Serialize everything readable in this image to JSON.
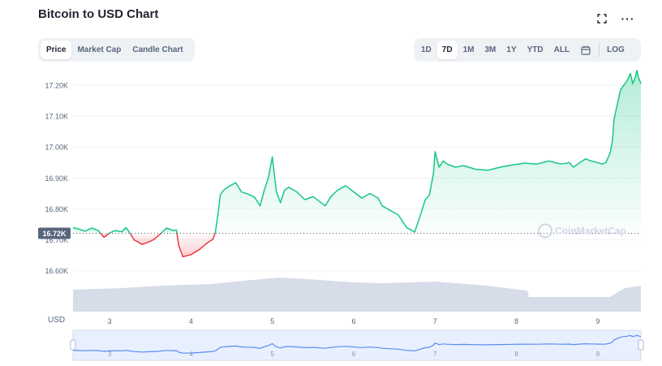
{
  "header": {
    "title": "Bitcoin to USD Chart"
  },
  "tabs": [
    {
      "label": "Price",
      "active": true
    },
    {
      "label": "Market Cap",
      "active": false
    },
    {
      "label": "Candle Chart",
      "active": false
    }
  ],
  "ranges": [
    {
      "label": "1D",
      "active": false
    },
    {
      "label": "7D",
      "active": true
    },
    {
      "label": "1M",
      "active": false
    },
    {
      "label": "3M",
      "active": false
    },
    {
      "label": "1Y",
      "active": false
    },
    {
      "label": "YTD",
      "active": false
    },
    {
      "label": "ALL",
      "active": false
    }
  ],
  "log_label": "LOG",
  "icons": {
    "expand": "expand-icon",
    "more": "more-icon",
    "calendar": "calendar-icon"
  },
  "colors": {
    "up": "#16c784",
    "down": "#ea3943",
    "volume": "#cfd6e4",
    "navigator": "#e8efff",
    "navigator_line": "#5b8def"
  },
  "watermark": "CoinMarketCap",
  "chart_data": {
    "type": "line",
    "currency_label": "USD",
    "y_ticks": [
      "17.20K",
      "17.10K",
      "17.00K",
      "16.90K",
      "16.80K",
      "16.70K",
      "16.60K"
    ],
    "y_tick_values": [
      17200,
      17100,
      17000,
      16900,
      16800,
      16700,
      16600
    ],
    "x_ticks": [
      "3",
      "4",
      "5",
      "6",
      "7",
      "8",
      "9"
    ],
    "x_tick_values": [
      3,
      4,
      5,
      6,
      7,
      8,
      9
    ],
    "ylim": [
      16570,
      17250
    ],
    "xlim": [
      2.55,
      9.53
    ],
    "baseline_label": "16.72K",
    "baseline_value": 16721,
    "series": [
      {
        "values": [
          [
            2.55,
            16740
          ],
          [
            2.62,
            16735
          ],
          [
            2.7,
            16728
          ],
          [
            2.78,
            16738
          ],
          [
            2.86,
            16730
          ],
          [
            2.93,
            16708
          ],
          [
            3.0,
            16722
          ],
          [
            3.07,
            16730
          ],
          [
            3.15,
            16726
          ],
          [
            3.2,
            16740
          ],
          [
            3.25,
            16722
          ],
          [
            3.3,
            16700
          ],
          [
            3.4,
            16685
          ],
          [
            3.5,
            16695
          ],
          [
            3.55,
            16702
          ],
          [
            3.62,
            16718
          ],
          [
            3.7,
            16738
          ],
          [
            3.78,
            16730
          ],
          [
            3.82,
            16732
          ],
          [
            3.85,
            16680
          ],
          [
            3.9,
            16645
          ],
          [
            4.0,
            16652
          ],
          [
            4.1,
            16668
          ],
          [
            4.2,
            16690
          ],
          [
            4.27,
            16702
          ],
          [
            4.3,
            16725
          ],
          [
            4.33,
            16780
          ],
          [
            4.36,
            16845
          ],
          [
            4.4,
            16860
          ],
          [
            4.45,
            16870
          ],
          [
            4.55,
            16885
          ],
          [
            4.62,
            16855
          ],
          [
            4.7,
            16848
          ],
          [
            4.78,
            16838
          ],
          [
            4.85,
            16810
          ],
          [
            4.9,
            16860
          ],
          [
            4.95,
            16900
          ],
          [
            5.0,
            16968
          ],
          [
            5.05,
            16855
          ],
          [
            5.1,
            16820
          ],
          [
            5.15,
            16860
          ],
          [
            5.2,
            16870
          ],
          [
            5.3,
            16855
          ],
          [
            5.4,
            16830
          ],
          [
            5.5,
            16840
          ],
          [
            5.6,
            16820
          ],
          [
            5.65,
            16810
          ],
          [
            5.72,
            16840
          ],
          [
            5.8,
            16860
          ],
          [
            5.9,
            16875
          ],
          [
            6.0,
            16855
          ],
          [
            6.1,
            16835
          ],
          [
            6.2,
            16850
          ],
          [
            6.3,
            16835
          ],
          [
            6.35,
            16810
          ],
          [
            6.45,
            16795
          ],
          [
            6.55,
            16780
          ],
          [
            6.65,
            16740
          ],
          [
            6.75,
            16725
          ],
          [
            6.82,
            16780
          ],
          [
            6.88,
            16830
          ],
          [
            6.93,
            16845
          ],
          [
            6.98,
            16915
          ],
          [
            7.0,
            16985
          ],
          [
            7.05,
            16935
          ],
          [
            7.1,
            16955
          ],
          [
            7.15,
            16945
          ],
          [
            7.25,
            16935
          ],
          [
            7.35,
            16940
          ],
          [
            7.5,
            16928
          ],
          [
            7.65,
            16925
          ],
          [
            7.8,
            16935
          ],
          [
            7.95,
            16942
          ],
          [
            8.1,
            16948
          ],
          [
            8.25,
            16945
          ],
          [
            8.4,
            16955
          ],
          [
            8.55,
            16945
          ],
          [
            8.65,
            16950
          ],
          [
            8.7,
            16935
          ],
          [
            8.78,
            16950
          ],
          [
            8.85,
            16962
          ],
          [
            8.92,
            16955
          ],
          [
            9.0,
            16950
          ],
          [
            9.05,
            16945
          ],
          [
            9.1,
            16950
          ],
          [
            9.15,
            16980
          ],
          [
            9.18,
            17020
          ],
          [
            9.2,
            17090
          ],
          [
            9.25,
            17150
          ],
          [
            9.28,
            17185
          ],
          [
            9.32,
            17200
          ],
          [
            9.36,
            17215
          ],
          [
            9.4,
            17238
          ],
          [
            9.43,
            17205
          ],
          [
            9.46,
            17225
          ],
          [
            9.48,
            17248
          ],
          [
            9.5,
            17225
          ],
          [
            9.53,
            17205
          ]
        ]
      }
    ]
  }
}
